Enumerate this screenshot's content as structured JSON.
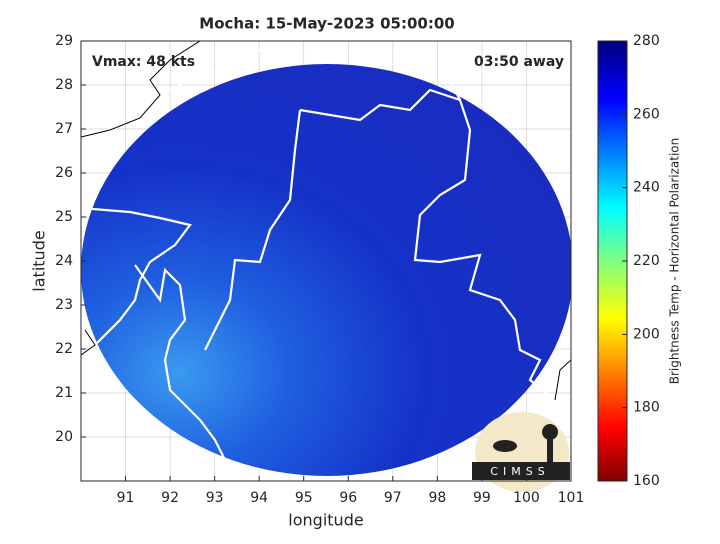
{
  "chart_data": {
    "type": "map",
    "title": "Mocha: 15-May-2023 05:00:00",
    "annotations": [
      "Vmax: 48 kts",
      "03:50 away"
    ],
    "logo": "CIMSS",
    "xlabel": "longitude",
    "ylabel": "latitude",
    "xlim": [
      90,
      101
    ],
    "xticks": [
      91,
      92,
      93,
      94,
      95,
      96,
      97,
      98,
      99,
      100,
      101
    ],
    "ylim": [
      19,
      29
    ],
    "yticks": [
      20,
      21,
      22,
      23,
      24,
      25,
      26,
      27,
      28,
      29
    ],
    "grid": true,
    "colorbar": {
      "label": "Brightness Temp - Horizontal Polarization",
      "lim": [
        160,
        280
      ],
      "ticks": [
        160,
        180,
        200,
        220,
        240,
        260,
        280
      ]
    }
  }
}
